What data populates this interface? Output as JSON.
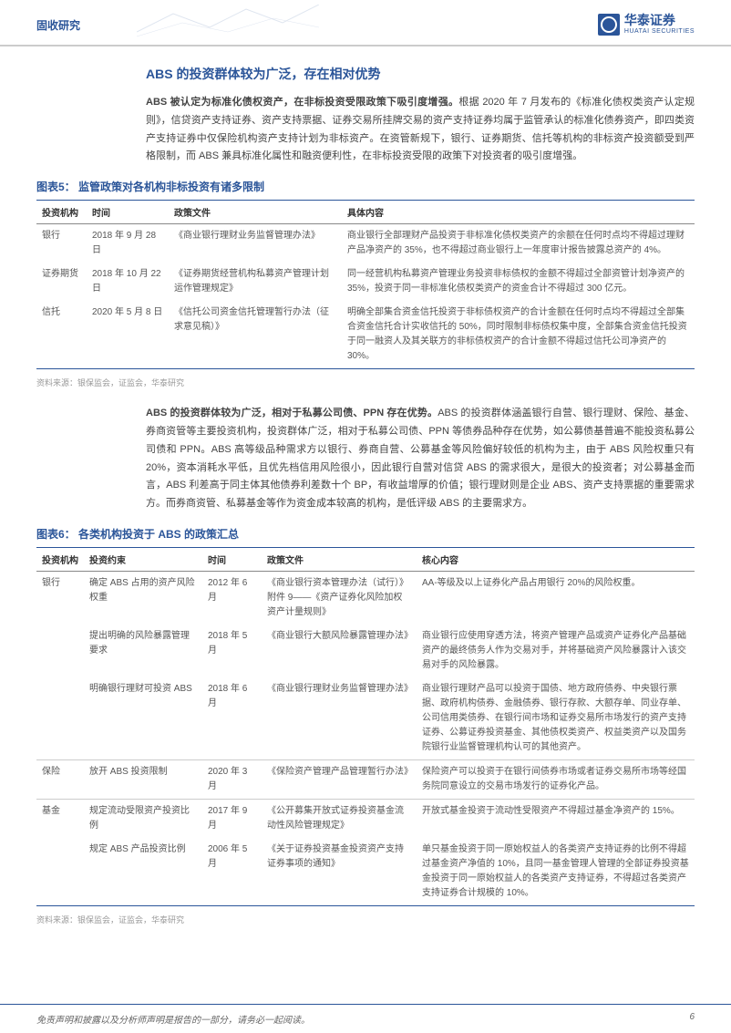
{
  "header": {
    "category": "固收研究",
    "logo_cn": "华泰证券",
    "logo_en": "HUATAI SECURITIES"
  },
  "section1": {
    "title": "ABS 的投资群体较为广泛，存在相对优势",
    "para_bold": "ABS 被认定为标准化债权资产，在非标投资受限政策下吸引度增强。",
    "para_rest": "根据 2020 年 7 月发布的《标准化债权类资产认定规则》，信贷资产支持证券、资产支持票据、证券交易所挂牌交易的资产支持证券均属于监管承认的标准化债券资产，即四类资产支持证券中仅保险机构资产支持计划为非标资产。在资管新规下，银行、证券期货、信托等机构的非标资产投资额受到严格限制，而 ABS 兼具标准化属性和融资便利性，在非标投资受限的政策下对投资者的吸引度增强。"
  },
  "table5": {
    "caption": "图表5：  监管政策对各机构非标投资有诸多限制",
    "headers": [
      "投资机构",
      "时间",
      "政策文件",
      "具体内容"
    ],
    "rows": [
      [
        "银行",
        "2018 年 9 月 28 日",
        "《商业银行理财业务监督管理办法》",
        "商业银行全部理财产品投资于非标准化债权类资产的余额在任何时点均不得超过理财产品净资产的 35%，也不得超过商业银行上一年度审计报告披露总资产的 4%。"
      ],
      [
        "证券期货",
        "2018 年 10 月 22 日",
        "《证券期货经营机构私募资产管理计划运作管理规定》",
        "同一经营机构私募资产管理业务投资非标债权的金额不得超过全部资管计划净资产的 35%，投资于同一非标准化债权类资产的资金合计不得超过 300 亿元。"
      ],
      [
        "信托",
        "2020 年 5 月 8 日",
        "《信托公司资金信托管理暂行办法（征求意见稿）》",
        "明确全部集合资金信托投资于非标债权资产的合计金额在任何时点均不得超过全部集合资金信托合计实收信托的 50%，同时限制非标债权集中度，全部集合资金信托投资于同一融资人及其关联方的非标债权资产的合计金额不得超过信托公司净资产的 30%。"
      ]
    ],
    "source": "资料来源：银保监会，证监会，华泰研究"
  },
  "section2": {
    "para_bold": "ABS 的投资群体较为广泛，相对于私募公司债、PPN 存在优势。",
    "para_rest": "ABS 的投资群体涵盖银行自营、银行理财、保险、基金、券商资管等主要投资机构，投资群体广泛，相对于私募公司债、PPN 等债券品种存在优势，如公募债基普遍不能投资私募公司债和 PPN。ABS 高等级品种需求方以银行、券商自营、公募基金等风险偏好较低的机构为主，由于 ABS 风险权重只有 20%，资本消耗水平低，且优先档信用风险很小，因此银行自营对信贷 ABS 的需求很大，是很大的投资者；对公募基金而言，ABS 利差高于同主体其他债券利差数十个 BP，有收益增厚的价值；银行理财则是企业 ABS、资产支持票据的重要需求方。而券商资管、私募基金等作为资金成本较高的机构，是低评级 ABS 的主要需求方。"
  },
  "table6": {
    "caption": "图表6：  各类机构投资于 ABS 的政策汇总",
    "headers": [
      "投资机构",
      "投资约束",
      "时间",
      "政策文件",
      "核心内容"
    ],
    "rows": [
      {
        "cells": [
          "银行",
          "确定 ABS 占用的资产风险权重",
          "2012 年 6 月",
          "《商业银行资本管理办法（试行）》附件 9——《资产证券化风险加权资产计量规则》",
          "AA-等级及以上证券化产品占用银行 20%的风险权重。"
        ],
        "sep": false
      },
      {
        "cells": [
          "",
          "提出明确的风险暴露管理要求",
          "2018 年 5 月",
          "《商业银行大额风险暴露管理办法》",
          "商业银行应使用穿透方法，将资产管理产品或资产证券化产品基础资产的最终债务人作为交易对手，并将基础资产风险暴露计入该交易对手的风险暴露。"
        ],
        "sep": false
      },
      {
        "cells": [
          "",
          "明确银行理财可投资 ABS",
          "2018 年 6 月",
          "《商业银行理财业务监督管理办法》",
          "商业银行理财产品可以投资于国债、地方政府债券、中央银行票据、政府机构债券、金融债券、银行存款、大额存单、同业存单、公司信用类债券、在银行间市场和证券交易所市场发行的资产支持证券、公募证券投资基金、其他债权类资产、权益类资产以及国务院银行业监督管理机构认可的其他资产。"
        ],
        "sep": true
      },
      {
        "cells": [
          "保险",
          "放开 ABS 投资限制",
          "2020 年 3 月",
          "《保险资产管理产品管理暂行办法》",
          "保险资产可以投资于在银行间债券市场或者证券交易所市场等经国务院同意设立的交易市场发行的证券化产品。"
        ],
        "sep": true
      },
      {
        "cells": [
          "基金",
          "规定流动受限资产投资比例",
          "2017 年 9 月",
          "《公开募集开放式证券投资基金流动性风险管理规定》",
          "开放式基金投资于流动性受限资产不得超过基金净资产的 15%。"
        ],
        "sep": false
      },
      {
        "cells": [
          "",
          "规定 ABS 产品投资比例",
          "2006 年 5 月",
          "《关于证券投资基金投资资产支持证券事项的通知》",
          "单只基金投资于同一原始权益人的各类资产支持证券的比例不得超过基金资产净值的 10%，且同一基金管理人管理的全部证券投资基金投资于同一原始权益人的各类资产支持证券，不得超过各类资产支持证券合计规模的 10%。"
        ],
        "sep": false
      }
    ],
    "source": "资料来源：银保监会，证监会，华泰研究"
  },
  "footer": {
    "disclaimer": "免责声明和披露以及分析师声明是报告的一部分，请务必一起阅读。",
    "page": "6"
  }
}
